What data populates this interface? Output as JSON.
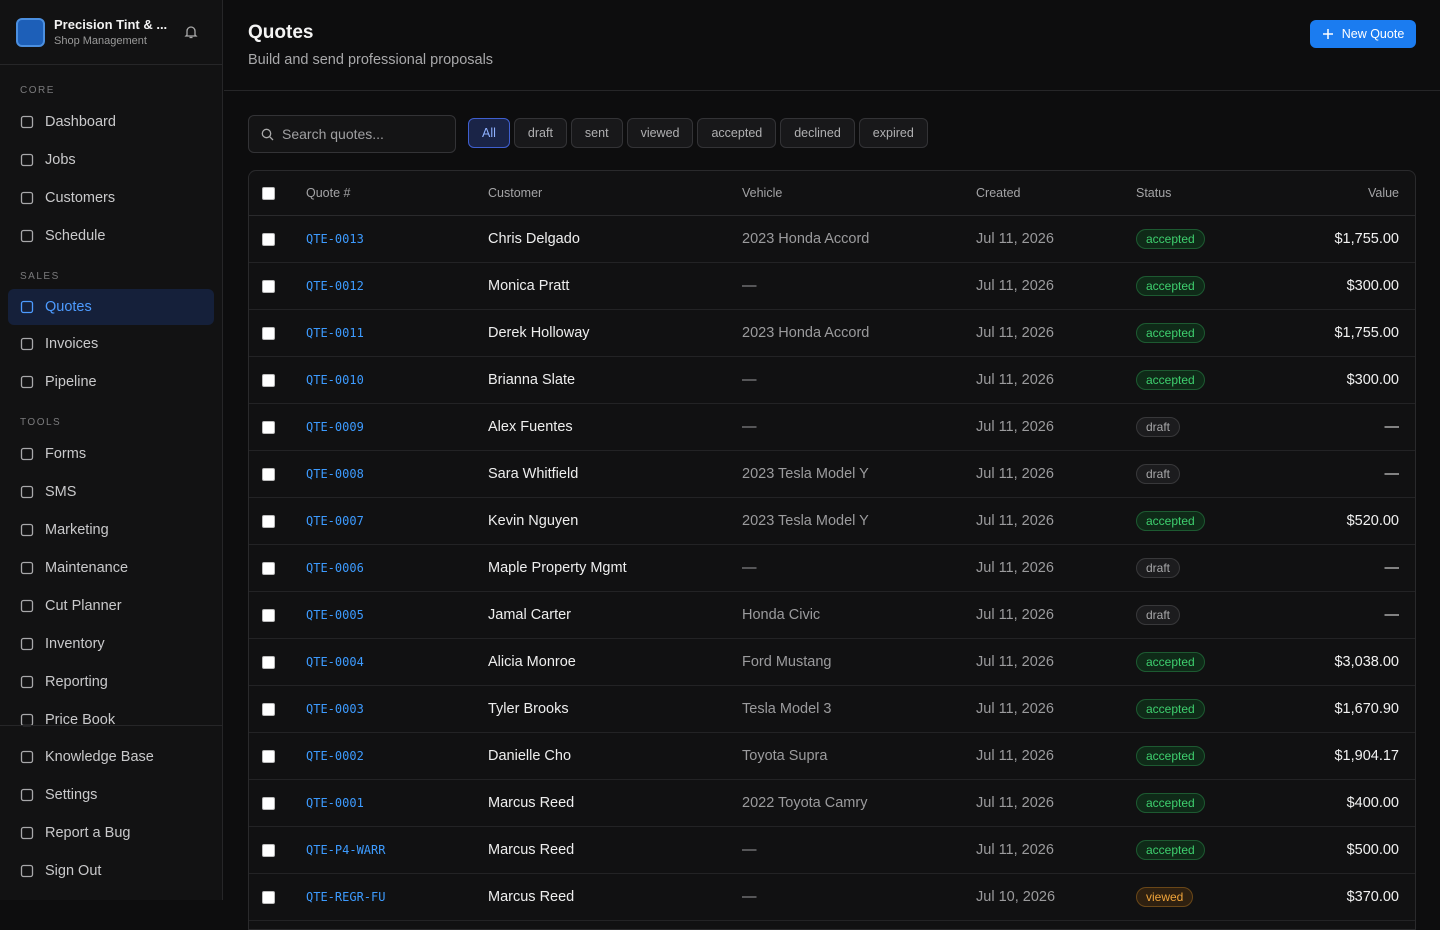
{
  "sidebar": {
    "brand": {
      "name": "Precision Tint & ...",
      "subtitle": "Shop Management"
    },
    "sections": [
      {
        "label": "CORE",
        "items": [
          {
            "label": "Dashboard"
          },
          {
            "label": "Jobs"
          },
          {
            "label": "Customers"
          },
          {
            "label": "Schedule"
          }
        ]
      },
      {
        "label": "SALES",
        "items": [
          {
            "label": "Quotes",
            "active": true
          },
          {
            "label": "Invoices"
          },
          {
            "label": "Pipeline"
          }
        ]
      },
      {
        "label": "TOOLS",
        "items": [
          {
            "label": "Forms"
          },
          {
            "label": "SMS"
          },
          {
            "label": "Marketing"
          },
          {
            "label": "Maintenance"
          },
          {
            "label": "Cut Planner"
          },
          {
            "label": "Inventory"
          },
          {
            "label": "Reporting"
          },
          {
            "label": "Price Book"
          }
        ]
      }
    ],
    "footer_items": [
      "Knowledge Base",
      "Settings",
      "Report a Bug",
      "Sign Out"
    ]
  },
  "header": {
    "title": "Quotes",
    "subtitle": "Build and send professional proposals",
    "button": "New Quote"
  },
  "search": {
    "placeholder": "Search quotes..."
  },
  "filters": {
    "options": [
      "All",
      "draft",
      "sent",
      "viewed",
      "accepted",
      "declined",
      "expired"
    ],
    "active": "All"
  },
  "table": {
    "columns": [
      "Quote #",
      "Customer",
      "Vehicle",
      "Created",
      "Status",
      "Value"
    ],
    "rows": [
      [
        "QTE-0013",
        "Chris Delgado",
        "2023 Honda Accord",
        "Jul 11, 2026",
        "accepted",
        "$1,755.00"
      ],
      [
        "QTE-0012",
        "Monica Pratt",
        "—",
        "Jul 11, 2026",
        "accepted",
        "$300.00"
      ],
      [
        "QTE-0011",
        "Derek Holloway",
        "2023 Honda Accord",
        "Jul 11, 2026",
        "accepted",
        "$1,755.00"
      ],
      [
        "QTE-0010",
        "Brianna Slate",
        "—",
        "Jul 11, 2026",
        "accepted",
        "$300.00"
      ],
      [
        "QTE-0009",
        "Alex Fuentes",
        "—",
        "Jul 11, 2026",
        "draft",
        "—"
      ],
      [
        "QTE-0008",
        "Sara Whitfield",
        "2023 Tesla Model Y",
        "Jul 11, 2026",
        "draft",
        "—"
      ],
      [
        "QTE-0007",
        "Kevin Nguyen",
        "2023 Tesla Model Y",
        "Jul 11, 2026",
        "accepted",
        "$520.00"
      ],
      [
        "QTE-0006",
        "Maple Property Mgmt",
        "—",
        "Jul 11, 2026",
        "draft",
        "—"
      ],
      [
        "QTE-0005",
        "Jamal Carter",
        "Honda Civic",
        "Jul 11, 2026",
        "draft",
        "—"
      ],
      [
        "QTE-0004",
        "Alicia Monroe",
        "Ford Mustang",
        "Jul 11, 2026",
        "accepted",
        "$3,038.00"
      ],
      [
        "QTE-0003",
        "Tyler Brooks",
        "Tesla Model 3",
        "Jul 11, 2026",
        "accepted",
        "$1,670.90"
      ],
      [
        "QTE-0002",
        "Danielle Cho",
        "Toyota Supra",
        "Jul 11, 2026",
        "accepted",
        "$1,904.17"
      ],
      [
        "QTE-0001",
        "Marcus Reed",
        "2022 Toyota Camry",
        "Jul 11, 2026",
        "accepted",
        "$400.00"
      ],
      [
        "QTE-P4-WARR",
        "Marcus Reed",
        "—",
        "Jul 11, 2026",
        "accepted",
        "$500.00"
      ],
      [
        "QTE-REGR-FU",
        "Marcus Reed",
        "—",
        "Jul 10, 2026",
        "viewed",
        "$370.00"
      ]
    ]
  }
}
